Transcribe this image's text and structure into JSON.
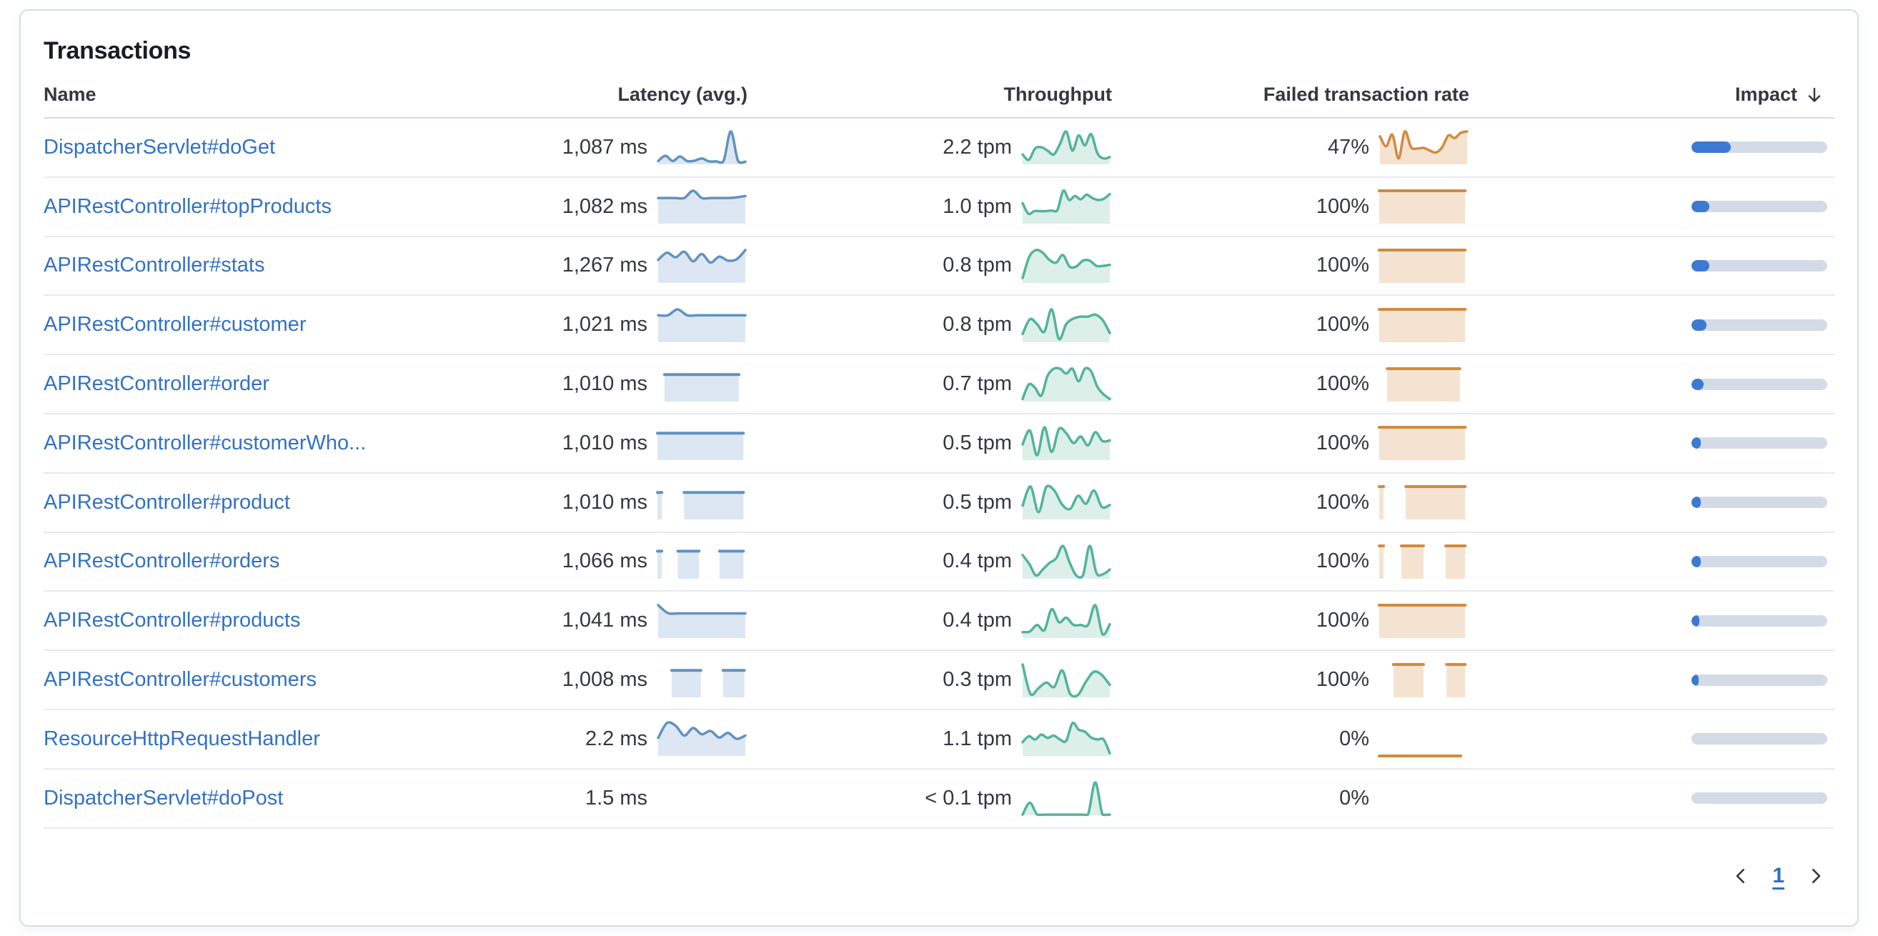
{
  "panel": {
    "title": "Transactions"
  },
  "table": {
    "columns": [
      "Name",
      "Latency (avg.)",
      "Throughput",
      "Failed transaction rate",
      "Impact"
    ],
    "sort": {
      "column": "Impact",
      "direction": "desc"
    },
    "rows": [
      {
        "name": "DispatcherServlet#doGet",
        "latency": "1,087 ms",
        "throughput": "2.2 tpm",
        "failed_rate": "47%",
        "impact_pct": 29,
        "latency_spark": {
          "kind": "wavy",
          "points": [
            0.1,
            0.26,
            0.1,
            0.24,
            0.1,
            0.11,
            0.18,
            0.09,
            0.09,
            0.1,
            1.0,
            0.1,
            0.08
          ]
        },
        "throughput_spark": {
          "kind": "wavy",
          "points": [
            0.3,
            0.14,
            0.48,
            0.52,
            0.42,
            0.3,
            0.62,
            1.0,
            0.42,
            0.88,
            0.58,
            0.92,
            0.34,
            0.18,
            0.22
          ]
        },
        "failed_spark": {
          "kind": "wavy",
          "points": [
            0.85,
            0.55,
            0.9,
            0.18,
            1.0,
            0.52,
            0.48,
            0.5,
            0.42,
            0.36,
            0.52,
            0.88,
            0.8,
            0.96,
            1.0
          ]
        }
      },
      {
        "name": "APIRestController#topProducts",
        "latency": "1,082 ms",
        "throughput": "1.0 tpm",
        "failed_rate": "100%",
        "impact_pct": 13,
        "latency_spark": {
          "kind": "wavy",
          "points": [
            0.78,
            0.78,
            0.78,
            0.78,
            1.0,
            0.78,
            0.78,
            0.78,
            0.78,
            0.8,
            0.84
          ]
        },
        "throughput_spark": {
          "kind": "wavy",
          "points": [
            0.62,
            0.3,
            0.38,
            0.38,
            0.38,
            0.4,
            0.42,
            1.0,
            0.72,
            0.84,
            0.74,
            0.88,
            0.78,
            0.72,
            0.76,
            0.9
          ]
        },
        "failed_spark": {
          "kind": "blocks",
          "segments": [
            [
              0,
              0.97,
              1
            ]
          ]
        }
      },
      {
        "name": "APIRestController#stats",
        "latency": "1,267 ms",
        "throughput": "0.8 tpm",
        "failed_rate": "100%",
        "impact_pct": 13,
        "latency_spark": {
          "kind": "wavy",
          "points": [
            0.7,
            0.92,
            0.78,
            0.95,
            0.66,
            0.88,
            0.62,
            0.8,
            0.68,
            0.72,
            1.0
          ]
        },
        "throughput_spark": {
          "kind": "wavy",
          "points": [
            0.15,
            0.8,
            1.0,
            0.92,
            0.7,
            0.62,
            0.85,
            0.5,
            0.5,
            0.68,
            0.68,
            0.52,
            0.52,
            0.55
          ]
        },
        "failed_spark": {
          "kind": "blocks",
          "segments": [
            [
              0,
              0.97,
              1
            ]
          ]
        }
      },
      {
        "name": "APIRestController#customer",
        "latency": "1,021 ms",
        "throughput": "0.8 tpm",
        "failed_rate": "100%",
        "impact_pct": 11,
        "latency_spark": {
          "kind": "wavy",
          "points": [
            0.82,
            0.82,
            1.0,
            0.82,
            0.82,
            0.82,
            0.82,
            0.82,
            0.82,
            0.82
          ]
        },
        "throughput_spark": {
          "kind": "wavy",
          "points": [
            0.25,
            0.7,
            0.55,
            0.32,
            1.0,
            0.1,
            0.55,
            0.72,
            0.78,
            0.78,
            0.84,
            0.68,
            0.28
          ]
        },
        "failed_spark": {
          "kind": "blocks",
          "segments": [
            [
              0,
              0.97,
              1
            ]
          ]
        }
      },
      {
        "name": "APIRestController#order",
        "latency": "1,010 ms",
        "throughput": "0.7 tpm",
        "failed_rate": "100%",
        "impact_pct": 9,
        "latency_spark": {
          "kind": "blocks",
          "segments": [
            [
              0.08,
              0.92,
              0.82
            ]
          ]
        },
        "throughput_spark": {
          "kind": "wavy",
          "points": [
            0.08,
            0.52,
            0.42,
            0.18,
            0.78,
            1.0,
            1.0,
            0.85,
            1.0,
            0.62,
            1.0,
            0.92,
            0.45,
            0.22,
            0.08
          ]
        },
        "failed_spark": {
          "kind": "blocks",
          "segments": [
            [
              0.09,
              0.91,
              1
            ]
          ]
        }
      },
      {
        "name": "APIRestController#customerWho...",
        "latency": "1,010 ms",
        "throughput": "0.5 tpm",
        "failed_rate": "100%",
        "impact_pct": 7,
        "latency_spark": {
          "kind": "blocks",
          "segments": [
            [
              0,
              0.97,
              0.82
            ]
          ]
        },
        "throughput_spark": {
          "kind": "wavy",
          "points": [
            0.48,
            0.9,
            0.15,
            1.0,
            0.25,
            0.95,
            0.82,
            0.52,
            0.72,
            0.45,
            0.85,
            0.58,
            0.6
          ]
        },
        "failed_spark": {
          "kind": "blocks",
          "segments": [
            [
              0,
              0.97,
              1
            ]
          ]
        }
      },
      {
        "name": "APIRestController#product",
        "latency": "1,010 ms",
        "throughput": "0.5 tpm",
        "failed_rate": "100%",
        "impact_pct": 7,
        "latency_spark": {
          "kind": "blocks",
          "segments": [
            [
              0,
              0.05,
              0.82
            ],
            [
              0.3,
              0.97,
              0.82
            ]
          ]
        },
        "throughput_spark": {
          "kind": "wavy",
          "points": [
            0.42,
            1.0,
            0.22,
            1.0,
            0.88,
            0.45,
            0.32,
            0.72,
            0.48,
            0.88,
            0.38,
            0.44
          ]
        },
        "failed_spark": {
          "kind": "blocks",
          "segments": [
            [
              0,
              0.05,
              1
            ],
            [
              0.3,
              0.97,
              1
            ]
          ]
        }
      },
      {
        "name": "APIRestController#orders",
        "latency": "1,066 ms",
        "throughput": "0.4 tpm",
        "failed_rate": "100%",
        "impact_pct": 7,
        "latency_spark": {
          "kind": "blocks",
          "segments": [
            [
              0,
              0.05,
              0.84
            ],
            [
              0.23,
              0.47,
              0.84
            ],
            [
              0.7,
              0.97,
              0.84
            ]
          ]
        },
        "throughput_spark": {
          "kind": "wavy",
          "points": [
            0.72,
            0.45,
            0.1,
            0.28,
            0.48,
            0.62,
            1.0,
            0.5,
            0.1,
            0.1,
            1.0,
            0.18,
            0.14,
            0.28
          ]
        },
        "failed_spark": {
          "kind": "blocks",
          "segments": [
            [
              0,
              0.05,
              1
            ],
            [
              0.25,
              0.5,
              1
            ],
            [
              0.75,
              0.97,
              1
            ]
          ]
        }
      },
      {
        "name": "APIRestController#products",
        "latency": "1,041 ms",
        "throughput": "0.4 tpm",
        "failed_rate": "100%",
        "impact_pct": 6,
        "latency_spark": {
          "kind": "wavy",
          "points": [
            1.0,
            0.76,
            0.75,
            0.75,
            0.75,
            0.75,
            0.75,
            0.75,
            0.75,
            0.75
          ]
        },
        "throughput_spark": {
          "kind": "wavy",
          "points": [
            0.18,
            0.2,
            0.4,
            0.24,
            0.88,
            0.48,
            0.62,
            0.4,
            0.4,
            0.4,
            1.0,
            0.12,
            0.42
          ]
        },
        "failed_spark": {
          "kind": "blocks",
          "segments": [
            [
              0,
              0.97,
              1
            ]
          ]
        }
      },
      {
        "name": "APIRestController#customers",
        "latency": "1,008 ms",
        "throughput": "0.3 tpm",
        "failed_rate": "100%",
        "impact_pct": 5,
        "latency_spark": {
          "kind": "blocks",
          "segments": [
            [
              0.16,
              0.49,
              0.82
            ],
            [
              0.74,
              0.98,
              0.82
            ]
          ]
        },
        "throughput_spark": {
          "kind": "wavy",
          "points": [
            1.0,
            0.1,
            0.28,
            0.45,
            0.32,
            0.82,
            0.1,
            0.08,
            0.48,
            0.78,
            0.68,
            0.38
          ]
        },
        "failed_spark": {
          "kind": "blocks",
          "segments": [
            [
              0.16,
              0.5,
              1
            ],
            [
              0.76,
              0.97,
              1
            ]
          ]
        }
      },
      {
        "name": "ResourceHttpRequestHandler",
        "latency": "2.2 ms",
        "throughput": "1.1 tpm",
        "failed_rate": "0%",
        "impact_pct": 0,
        "latency_spark": {
          "kind": "wavy",
          "points": [
            0.55,
            1.0,
            0.92,
            0.62,
            0.85,
            0.66,
            0.76,
            0.56,
            0.7,
            0.52,
            0.62
          ]
        },
        "throughput_spark": {
          "kind": "wavy",
          "points": [
            0.42,
            0.6,
            0.5,
            0.65,
            0.55,
            0.62,
            0.5,
            0.46,
            1.0,
            0.8,
            0.74,
            0.56,
            0.5,
            0.5,
            0.08
          ]
        },
        "failed_spark": {
          "kind": "blocks",
          "segments": [
            [
              0,
              0.92,
              0
            ]
          ]
        }
      },
      {
        "name": "DispatcherServlet#doPost",
        "latency": "1.5 ms",
        "throughput": "< 0.1 tpm",
        "failed_rate": "0%",
        "impact_pct": 0,
        "latency_spark": null,
        "throughput_spark": {
          "kind": "wavy",
          "points": [
            0.02,
            0.38,
            0.02,
            0.02,
            0.02,
            0.02,
            0.02,
            0.02,
            0.02,
            0.02,
            1.0,
            0.02,
            0.02
          ]
        },
        "failed_spark": null
      }
    ]
  },
  "pagination": {
    "current_page": "1"
  },
  "colors": {
    "latency_stroke": "#6092C0",
    "latency_fill": "#DDE7F3",
    "throughput_stroke": "#54B399",
    "throughput_fill": "#DCEFE8",
    "failed_stroke": "#D28A3D",
    "failed_fill": "#F5E3D1",
    "impact_fill": "#3B7AD0",
    "impact_track": "#D3DBE6",
    "link": "#3371C4",
    "text": "#343741"
  },
  "icons": {
    "sort_descending": "arrow-down",
    "prev_page": "chevron-left",
    "next_page": "chevron-right"
  }
}
